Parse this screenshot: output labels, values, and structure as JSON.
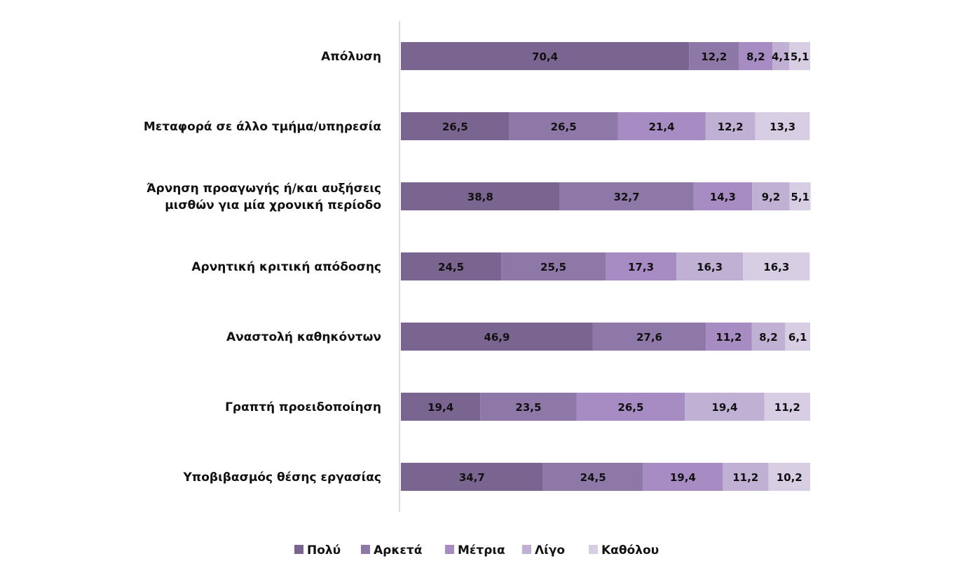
{
  "chart_data": {
    "type": "bar",
    "orientation": "horizontal",
    "stacked": true,
    "categories": [
      "Απόλυση",
      "Μεταφορά σε άλλο τμήμα/υπηρεσία",
      "Άρνηση προαγωγής ή/και αυξήσεις μισθών για μία χρονική περίοδο",
      "Αρνητική κριτική απόδοσης",
      "Αναστολή καθηκόντων",
      "Γραπτή προειδοποίηση",
      "Υποβιβασμός θέσης εργασίας"
    ],
    "category_lines": [
      [
        "Απόλυση"
      ],
      [
        "Μεταφορά σε άλλο τμήμα/υπηρεσία"
      ],
      [
        "Άρνηση προαγωγής ή/και αυξήσεις",
        "μισθών για μία χρονική περίοδο"
      ],
      [
        "Αρνητική κριτική απόδοσης"
      ],
      [
        "Αναστολή καθηκόντων"
      ],
      [
        "Γραπτή προειδοποίηση"
      ],
      [
        "Υποβιβασμός θέσης εργασίας"
      ]
    ],
    "series": [
      {
        "name": "Πολύ",
        "color": "#7a6490",
        "values": [
          70.4,
          26.5,
          38.8,
          24.5,
          46.9,
          19.4,
          34.7
        ],
        "labels": [
          "70,4",
          "26,5",
          "38,8",
          "24,5",
          "46,9",
          "19,4",
          "34,7"
        ]
      },
      {
        "name": "Αρκετά",
        "color": "#8e78a8",
        "values": [
          12.2,
          26.5,
          32.7,
          25.5,
          27.6,
          23.5,
          24.5
        ],
        "labels": [
          "12,2",
          "26,5",
          "32,7",
          "25,5",
          "27,6",
          "23,5",
          "24,5"
        ]
      },
      {
        "name": "Μέτρια",
        "color": "#a68cc3",
        "values": [
          8.2,
          21.4,
          14.3,
          17.3,
          11.2,
          26.5,
          19.4
        ],
        "labels": [
          "8,2",
          "21,4",
          "14,3",
          "17,3",
          "11,2",
          "26,5",
          "19,4"
        ]
      },
      {
        "name": "Λίγο",
        "color": "#c0b1d4",
        "values": [
          4.1,
          12.2,
          9.2,
          16.3,
          8.2,
          19.4,
          11.2
        ],
        "labels": [
          "4,1",
          "12,2",
          "9,2",
          "16,3",
          "8,2",
          "19,4",
          "11,2"
        ]
      },
      {
        "name": "Καθόλου",
        "color": "#d7cee4",
        "values": [
          5.1,
          13.3,
          5.1,
          16.3,
          6.1,
          11.2,
          10.2
        ],
        "labels": [
          "5,1",
          "13,3",
          "5,1",
          "16,3",
          "6,1",
          "11,2",
          "10,2"
        ]
      }
    ],
    "xlim": [
      0,
      100
    ],
    "grid": false,
    "legend": "bottom"
  }
}
